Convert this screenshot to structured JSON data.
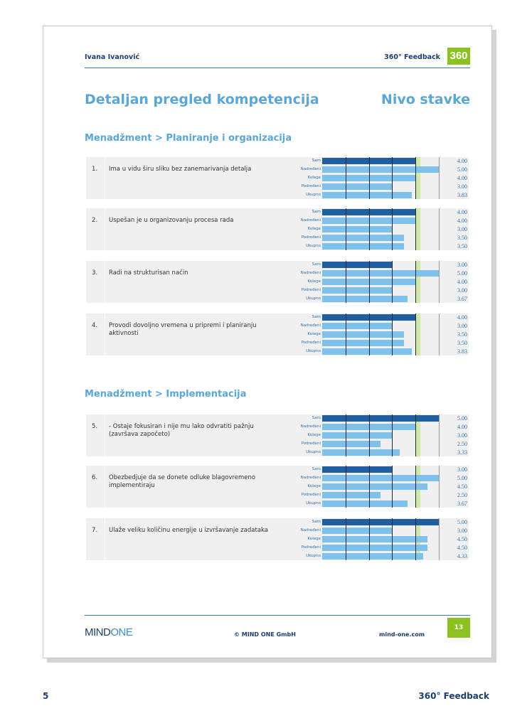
{
  "header": {
    "person": "Ivana Ivanović",
    "report": "360° Feedback",
    "badge": "360"
  },
  "title": "Detaljan pregled kompetencija",
  "title_right": "Nivo stavke",
  "row_labels": [
    "Sam",
    "Nadređeni",
    "Kolege",
    "Podređeni",
    "Ukupno"
  ],
  "scale": {
    "min": 0,
    "max": 5,
    "norm_low": 4.0,
    "norm_high": 4.2
  },
  "colors": {
    "sam": "#1f5fa0",
    "others": "#7ec1ea",
    "norm_band": "#d2e9a6",
    "accent": "#8cc21f",
    "title": "#5aa6d6"
  },
  "sections": [
    {
      "title": "Menadžment > Planiranje i organizacija",
      "items": [
        {
          "num": "1.",
          "text": "Ima u vidu širu sliku bez zanemarivanja detalja",
          "values": [
            4.0,
            5.0,
            4.0,
            3.0,
            3.83
          ],
          "labels": [
            "4.00",
            "5.00",
            "4.00",
            "3.00",
            "3.83"
          ]
        },
        {
          "num": "2.",
          "text": "Uspešan je u organizovanju procesa rada",
          "values": [
            4.0,
            4.0,
            3.0,
            3.5,
            3.5
          ],
          "labels": [
            "4.00",
            "4.00",
            "3.00",
            "3.50",
            "3.50"
          ]
        },
        {
          "num": "3.",
          "text": "Radi na strukturisan način",
          "values": [
            3.0,
            5.0,
            4.0,
            3.0,
            3.67
          ],
          "labels": [
            "3.00",
            "5.00",
            "4.00",
            "3.00",
            "3.67"
          ]
        },
        {
          "num": "4.",
          "text": "Provodi dovoljno vremena u pripremi i planiranju aktivnosti",
          "values": [
            4.0,
            3.0,
            3.5,
            3.5,
            3.83
          ],
          "labels": [
            "4.00",
            "3.00",
            "3.50",
            "3.50",
            "3.83"
          ]
        }
      ]
    },
    {
      "title": "Menadžment > Implementacija",
      "items": [
        {
          "num": "5.",
          "text": "- Ostaje fokusiran i nije mu lako odvratiti pažnju (završava započeto)",
          "values": [
            5.0,
            4.0,
            3.0,
            2.5,
            3.33
          ],
          "labels": [
            "5.00",
            "4.00",
            "3.00",
            "2.50",
            "3.33"
          ]
        },
        {
          "num": "6.",
          "text": "Obezbedjuje da se donete odluke blagovremeno implementiraju",
          "values": [
            3.0,
            5.0,
            4.5,
            2.5,
            3.67
          ],
          "labels": [
            "3.00",
            "5.00",
            "4.50",
            "2.50",
            "3.67"
          ]
        },
        {
          "num": "7.",
          "text": "Ulaže veliku količinu energije u izvršavanje zadataka",
          "values": [
            5.0,
            3.0,
            4.5,
            4.5,
            4.33
          ],
          "labels": [
            "5.00",
            "3.00",
            "4.50",
            "4.50",
            "4.33"
          ]
        }
      ]
    }
  ],
  "footer": {
    "logo_a": "MIND",
    "logo_b": "ONE",
    "copyright": "© MIND ONE GmbH",
    "site": "mind-one.com",
    "page_number": "13"
  },
  "bottom": {
    "left": "5",
    "right": "360° Feedback"
  }
}
